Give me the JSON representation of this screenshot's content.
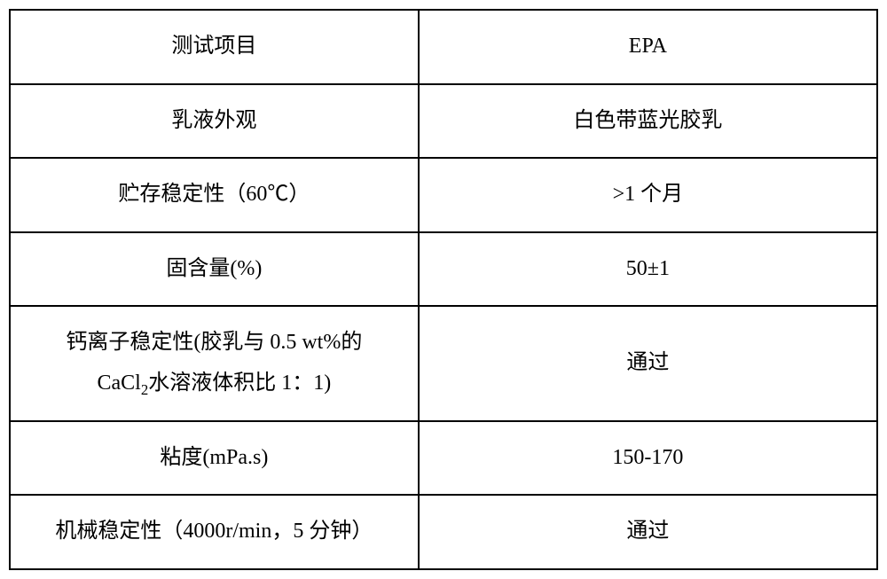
{
  "table": {
    "border_color": "#000000",
    "background_color": "#ffffff",
    "text_color": "#000000",
    "font_size_pt": 18,
    "font_family": "SimSun",
    "col_widths_ratio": [
      0.47,
      0.53
    ],
    "rows": [
      {
        "left": "测试项目",
        "right": "EPA"
      },
      {
        "left": "乳液外观",
        "right": "白色带蓝光胶乳"
      },
      {
        "left": "贮存稳定性（60℃）",
        "right": ">1 个月"
      },
      {
        "left": "固含量(%)",
        "right": "50±1"
      },
      {
        "left_line1": "钙离子稳定性(胶乳与 0.5 wt%的",
        "left_line2_pre": "CaCl",
        "left_line2_sub": "2",
        "left_line2_post": "水溶液体积比 1：1)",
        "right": "通过"
      },
      {
        "left": "粘度(mPa.s)",
        "right": "150-170"
      },
      {
        "left": "机械稳定性（4000r/min，5 分钟）",
        "right": "通过"
      }
    ]
  }
}
